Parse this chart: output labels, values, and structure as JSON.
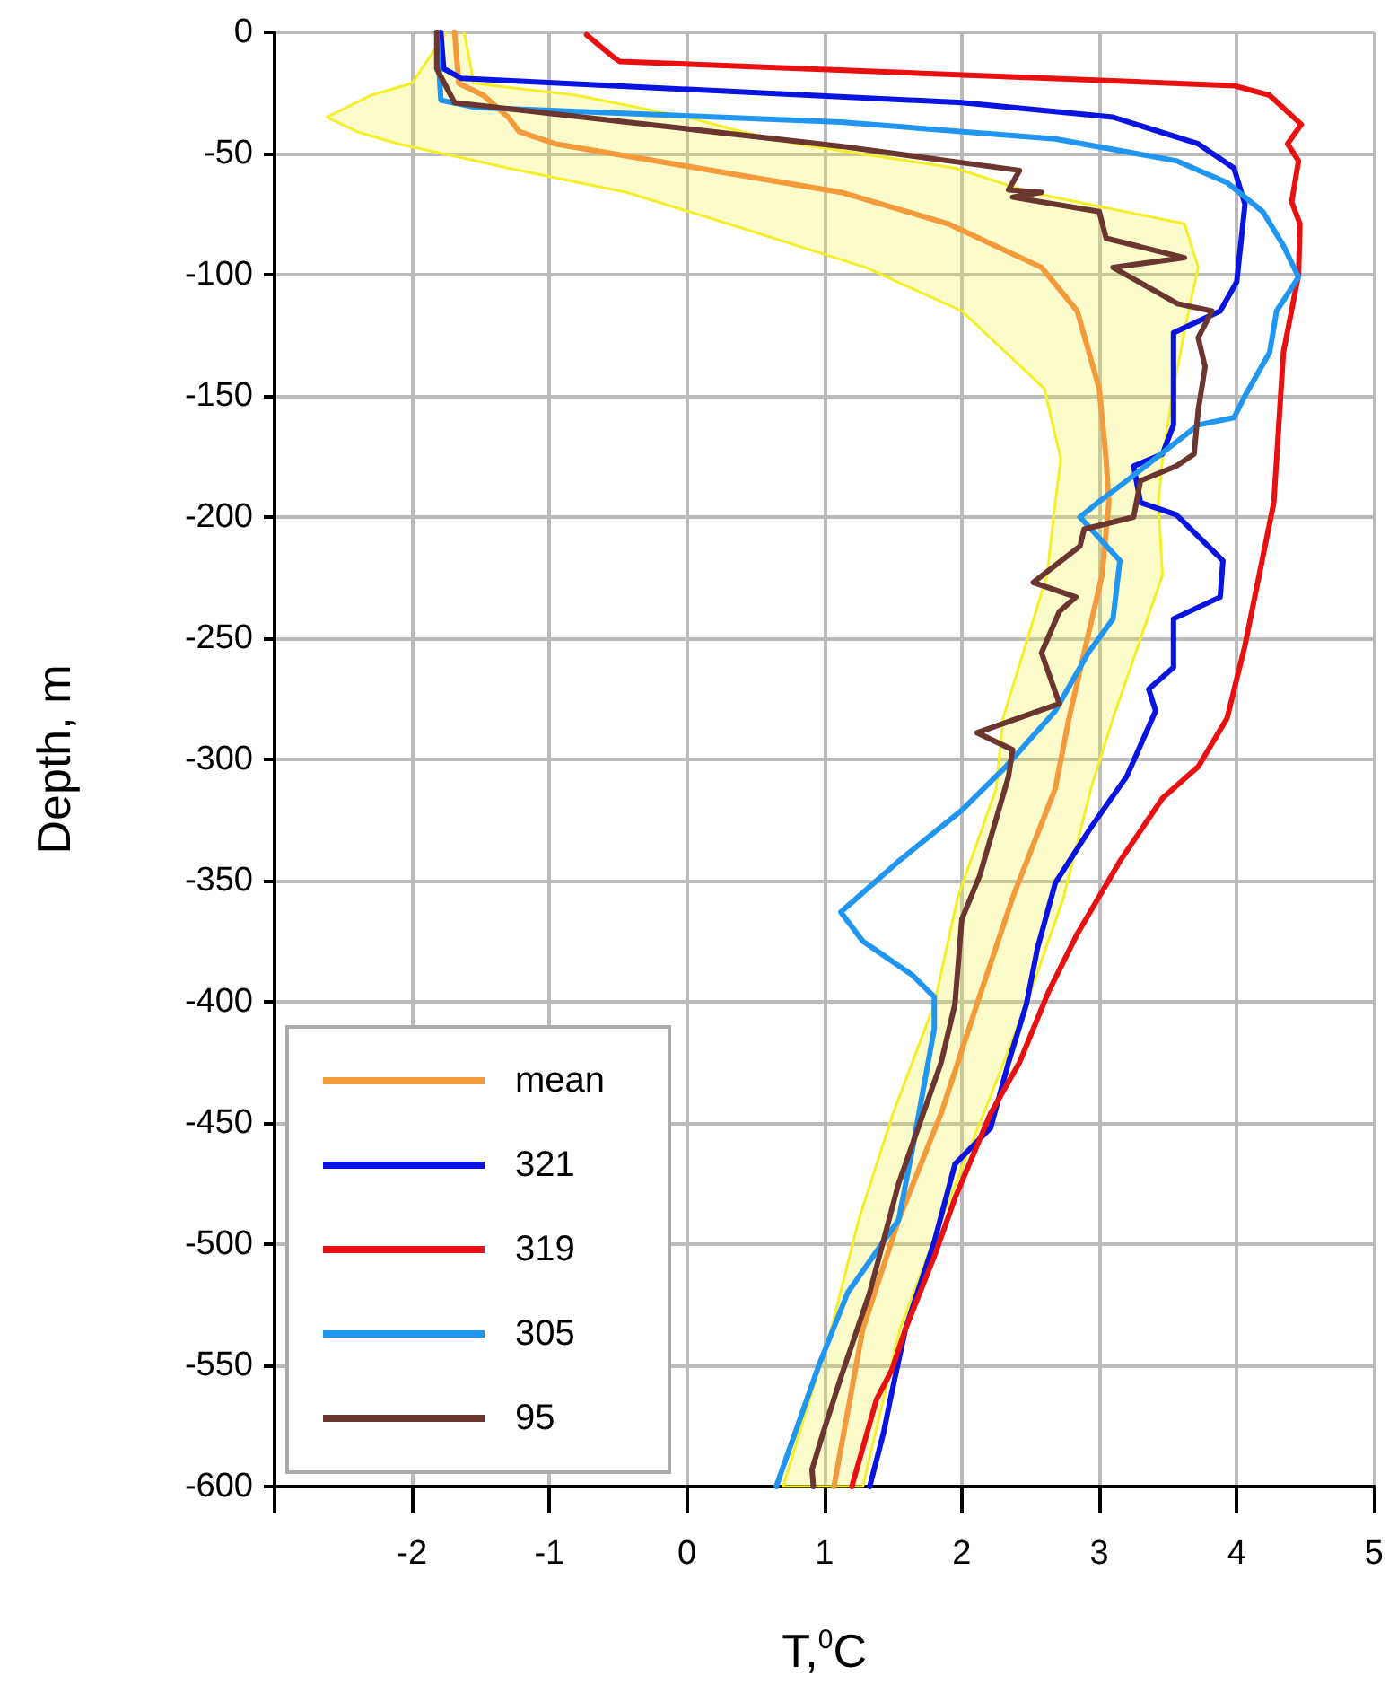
{
  "chart_data": {
    "type": "line",
    "xlabel": "T,$^{0}$C",
    "ylabel": "Depth, m",
    "xlim": [
      -3,
      5
    ],
    "xticks": [
      {
        "value": -3,
        "label": null
      },
      -2,
      -1,
      0,
      1,
      2,
      3,
      4,
      5
    ],
    "ylim": [
      -600,
      0
    ],
    "yticks": [
      -600,
      -550,
      -500,
      -450,
      -400,
      -350,
      -300,
      -250,
      -200,
      -150,
      -100,
      -50,
      0
    ],
    "grid": true,
    "legend": "bottom left",
    "series": [
      {
        "type": "area",
        "color": "#f5ef2a",
        "x": [
          -1.75,
          -2.0,
          -2.3,
          -2.62,
          -2.4,
          -2.1,
          -1.3,
          -0.44,
          0.3,
          1.3,
          2.0,
          2.6,
          2.72,
          2.68,
          2.62,
          2.3,
          2.25,
          1.97,
          1.8,
          1.5,
          1.25,
          1.05,
          0.7,
          1.28,
          1.55,
          1.85,
          2.16,
          2.47,
          2.74,
          2.94,
          3.1,
          3.46,
          3.43,
          3.46,
          3.54,
          3.65,
          3.72,
          3.62,
          2.5,
          1.95,
          0.8,
          0.4,
          0.0,
          -0.8,
          -1.55,
          -1.62
        ],
        "values": [
          0,
          -21,
          -26,
          -35,
          -41,
          -46,
          -56,
          -66,
          -79,
          -97,
          -115,
          -147,
          -176,
          -194,
          -224,
          -283,
          -312,
          -357,
          -401,
          -446,
          -490,
          -535,
          -600,
          -600,
          -535,
          -490,
          -446,
          -401,
          -357,
          -312,
          -283,
          -224,
          -194,
          -176,
          -147,
          -115,
          -97,
          -79,
          -66,
          -56,
          -46,
          -41,
          -35,
          -26,
          -21,
          0
        ]
      },
      {
        "name": "mean",
        "color": "#f39a3c",
        "x": [
          -1.69,
          -1.66,
          -1.48,
          -1.3,
          -1.22,
          -0.96,
          0.08,
          1.12,
          1.9,
          2.58,
          2.84,
          3.0,
          3.05,
          3.07,
          3.02,
          2.78,
          2.68,
          2.37,
          2.11,
          1.85,
          1.54,
          1.28,
          1.07
        ],
        "values": [
          0,
          -21,
          -26,
          -35,
          -41,
          -46,
          -56,
          -66,
          -79,
          -97,
          -115,
          -147,
          -176,
          -194,
          -224,
          -283,
          -312,
          -357,
          -401,
          -446,
          -490,
          -535,
          -600
        ]
      },
      {
        "name": "321",
        "color": "#0a14e0",
        "x": [
          -1.79,
          -1.77,
          -1.64,
          2.0,
          3.1,
          3.72,
          3.98,
          4.06,
          4.0,
          3.88,
          3.54,
          3.54,
          3.46,
          3.25,
          3.3,
          3.56,
          3.9,
          3.88,
          3.54,
          3.54,
          3.36,
          3.41,
          3.2,
          2.94,
          2.68,
          2.55,
          2.47,
          2.34,
          2.21,
          1.95,
          1.8,
          1.59,
          1.48,
          1.43,
          1.33
        ],
        "values": [
          0,
          -15,
          -19,
          -29,
          -35,
          -46,
          -56,
          -71,
          -103,
          -115,
          -124,
          -162,
          -174,
          -179,
          -194,
          -199,
          -218,
          -233,
          -242,
          -262,
          -271,
          -280,
          -307,
          -328,
          -351,
          -378,
          -401,
          -425,
          -452,
          -467,
          -499,
          -535,
          -564,
          -578,
          -600
        ]
      },
      {
        "name": "319",
        "color": "#e81010",
        "x": [
          -0.73,
          -0.54,
          -0.49,
          3.98,
          4.24,
          4.47,
          4.37,
          4.45,
          4.4,
          4.46,
          4.45,
          4.34,
          4.27,
          4.06,
          3.93,
          3.72,
          3.46,
          3.15,
          2.84,
          2.63,
          2.42,
          2.21,
          1.95,
          1.8,
          1.59,
          1.49,
          1.38,
          1.2
        ],
        "values": [
          -1,
          -10,
          -12,
          -22,
          -26,
          -38,
          -46,
          -53,
          -70,
          -79,
          -100,
          -132,
          -194,
          -253,
          -283,
          -303,
          -316,
          -342,
          -372,
          -396,
          -425,
          -446,
          -481,
          -505,
          -535,
          -552,
          -564,
          -600
        ]
      },
      {
        "name": "305",
        "color": "#2196f0",
        "x": [
          -1.82,
          -1.79,
          -1.53,
          1.12,
          2.68,
          3.56,
          3.93,
          4.19,
          4.34,
          4.45,
          4.29,
          4.24,
          4.06,
          3.98,
          3.72,
          3.2,
          2.99,
          2.86,
          3.15,
          3.1,
          2.92,
          2.68,
          2.32,
          2.0,
          1.54,
          1.12,
          1.28,
          1.64,
          1.8,
          1.8,
          1.64,
          1.54,
          1.17,
          0.96,
          0.65
        ],
        "values": [
          0,
          -28,
          -31,
          -37,
          -44,
          -53,
          -62,
          -74,
          -88,
          -101,
          -115,
          -132,
          -150,
          -159,
          -162,
          -185,
          -194,
          -200,
          -218,
          -242,
          -256,
          -280,
          -303,
          -321,
          -342,
          -363,
          -375,
          -389,
          -398,
          -411,
          -461,
          -490,
          -520,
          -550,
          -600
        ]
      },
      {
        "name": "95",
        "color": "#6b3530",
        "x": [
          -1.82,
          -1.82,
          -1.69,
          -0.44,
          1.12,
          1.9,
          2.42,
          2.34,
          2.58,
          2.37,
          3.0,
          3.05,
          3.62,
          3.1,
          3.57,
          3.82,
          3.72,
          3.77,
          3.72,
          3.69,
          3.56,
          3.3,
          3.25,
          2.89,
          2.86,
          2.52,
          2.83,
          2.71,
          2.58,
          2.71,
          2.11,
          2.37,
          2.34,
          2.13,
          2.0,
          1.95,
          1.85,
          1.54,
          1.33,
          1.12,
          0.99,
          0.91,
          0.92
        ],
        "values": [
          0,
          -15,
          -29,
          -37,
          -47,
          -53,
          -57,
          -65,
          -66,
          -68,
          -74,
          -85,
          -93,
          -97,
          -112,
          -115,
          -126,
          -138,
          -156,
          -174,
          -179,
          -185,
          -200,
          -205,
          -212,
          -227,
          -233,
          -239,
          -256,
          -277,
          -289,
          -296,
          -307,
          -348,
          -366,
          -401,
          -425,
          -475,
          -520,
          -555,
          -578,
          -593,
          -600
        ]
      }
    ]
  }
}
